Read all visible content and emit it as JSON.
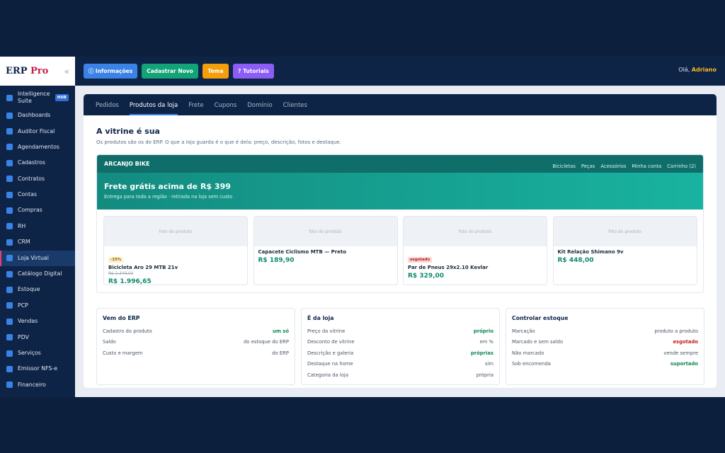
{
  "sidebar": {
    "brand": "ERP",
    "brand_accent": "Pro",
    "collapse_icon": "«",
    "hub_badge": "HUB",
    "items": [
      {
        "label": "Intelligence Suite"
      },
      {
        "label": "Dashboards"
      },
      {
        "label": "Auditor Fiscal"
      },
      {
        "label": "Agendamentos"
      },
      {
        "label": "Cadastros"
      },
      {
        "label": "Contratos"
      },
      {
        "label": "Contas"
      },
      {
        "label": "Compras"
      },
      {
        "label": "RH"
      },
      {
        "label": "CRM"
      },
      {
        "label": "Loja Virtual"
      },
      {
        "label": "Catálogo Digital"
      },
      {
        "label": "Estoque"
      },
      {
        "label": "PCP"
      },
      {
        "label": "Vendas"
      },
      {
        "label": "PDV"
      },
      {
        "label": "Serviços"
      },
      {
        "label": "Emissor NFS-e"
      },
      {
        "label": "Financeiro"
      }
    ]
  },
  "topbar": {
    "buttons": [
      {
        "label": "ⓘ Informações",
        "color": "#3b82e6"
      },
      {
        "label": "Cadastrar Novo",
        "color": "#12a377"
      },
      {
        "label": "Tema",
        "color": "#f59e0b"
      },
      {
        "label": "? Tutoriais",
        "color": "#8b5cf6"
      }
    ],
    "greeting": "Olá,",
    "user": "Adriano"
  },
  "tabs": [
    "Pedidos",
    "Produtos da loja",
    "Frete",
    "Cupons",
    "Domínio",
    "Clientes"
  ],
  "main": {
    "title": "A vitrine é sua",
    "subtitle": "Os produtos são os do ERP. O que a loja guarda é o que é dela: preço, descrição, fotos e destaque."
  },
  "store": {
    "name": "ARCANJO BIKE",
    "nav": [
      "Bicicletas",
      "Peças",
      "Acessórios",
      "Minha conta",
      "Carrinho (2)"
    ],
    "hero_title": "Frete grátis acima de R$ 399",
    "hero_sub": "Entrega para toda a região · retirada na loja sem custo",
    "photo_label": "foto do produto",
    "products": [
      {
        "badge": "-15%",
        "name": "Bicicleta Aro 29 MTB 21v",
        "old_price": "R$ 2.349,00",
        "price": "R$ 1.996,65"
      },
      {
        "badge": "",
        "name": "Capacete Ciclismo MTB — Preto",
        "old_price": "",
        "price": "R$ 189,90"
      },
      {
        "badge": "esgotado",
        "name": "Par de Pneus 29x2.10 Kevlar",
        "old_price": "",
        "price": "R$ 329,00"
      },
      {
        "badge": "",
        "name": "Kit Relação Shimano 9v",
        "old_price": "",
        "price": "R$ 448,00"
      }
    ]
  },
  "panels": [
    {
      "title": "Vem do ERP",
      "rows": [
        {
          "k": "Cadastro do produto",
          "v": "um só",
          "style": "green"
        },
        {
          "k": "Saldo",
          "v": "do estoque do ERP",
          "style": ""
        },
        {
          "k": "Custo e margem",
          "v": "do ERP",
          "style": ""
        }
      ]
    },
    {
      "title": "É da loja",
      "rows": [
        {
          "k": "Preço da vitrine",
          "v": "próprio",
          "style": "green"
        },
        {
          "k": "Desconto de vitrine",
          "v": "em %",
          "style": ""
        },
        {
          "k": "Descrição e galeria",
          "v": "próprias",
          "style": "green"
        },
        {
          "k": "Destaque na home",
          "v": "sim",
          "style": ""
        },
        {
          "k": "Categoria da loja",
          "v": "própria",
          "style": ""
        }
      ]
    },
    {
      "title": "Controlar estoque",
      "rows": [
        {
          "k": "Marcação",
          "v": "produto a produto",
          "style": ""
        },
        {
          "k": "Marcado e sem saldo",
          "v": "esgotado",
          "style": "red"
        },
        {
          "k": "Não marcado",
          "v": "vende sempre",
          "style": ""
        },
        {
          "k": "Sob encomenda",
          "v": "suportado",
          "style": "green"
        }
      ]
    }
  ]
}
